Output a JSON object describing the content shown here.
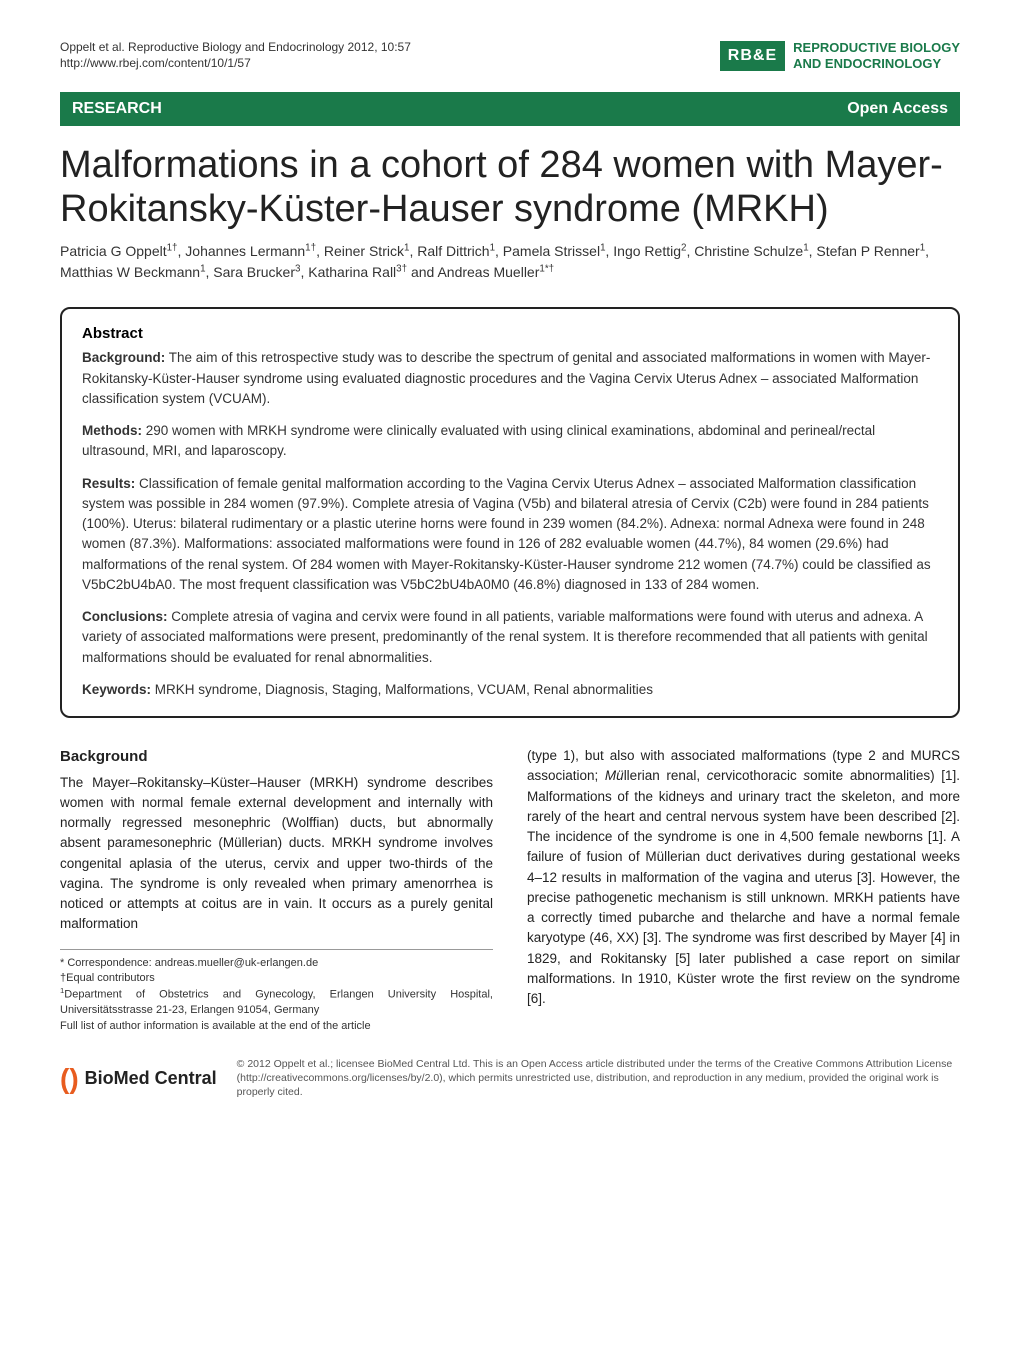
{
  "header": {
    "citation_line1": "Oppelt et al. Reproductive Biology and Endocrinology 2012, 10:57",
    "citation_line2": "http://www.rbej.com/content/10/1/57",
    "logo_abbrev": "RB&E",
    "logo_name_line1": "REPRODUCTIVE BIOLOGY",
    "logo_name_line2": "AND ENDOCRINOLOGY",
    "bar_left": "RESEARCH",
    "bar_right": "Open Access"
  },
  "title": "Malformations in a cohort of 284 women with Mayer-Rokitansky-Küster-Hauser syndrome (MRKH)",
  "authors_html": "Patricia G Oppelt<sup>1†</sup>, Johannes Lermann<sup>1†</sup>, Reiner Strick<sup>1</sup>, Ralf Dittrich<sup>1</sup>, Pamela Strissel<sup>1</sup>, Ingo Rettig<sup>2</sup>, Christine Schulze<sup>1</sup>, Stefan P Renner<sup>1</sup>, Matthias W Beckmann<sup>1</sup>, Sara Brucker<sup>3</sup>, Katharina Rall<sup>3†</sup> and Andreas Mueller<sup>1*†</sup>",
  "abstract": {
    "heading": "Abstract",
    "background_label": "Background:",
    "background": "The aim of this retrospective study was to describe the spectrum of genital and associated malformations in women with Mayer-Rokitansky-Küster-Hauser syndrome using evaluated diagnostic procedures and the Vagina Cervix Uterus Adnex – associated Malformation classification system (VCUAM).",
    "methods_label": "Methods:",
    "methods": "290 women with MRKH syndrome were clinically evaluated with using clinical examinations, abdominal and perineal/rectal ultrasound, MRI, and laparoscopy.",
    "results_label": "Results:",
    "results": "Classification of female genital malformation according to the Vagina Cervix Uterus Adnex – associated Malformation classification system was possible in 284 women (97.9%). Complete atresia of Vagina (V5b) and bilateral atresia of Cervix (C2b) were found in 284 patients (100%). Uterus: bilateral rudimentary or a plastic uterine horns were found in 239 women (84.2%). Adnexa: normal Adnexa were found in 248 women (87.3%). Malformations: associated malformations were found in 126 of 282 evaluable women (44.7%), 84 women (29.6%) had malformations of the renal system. Of 284 women with Mayer-Rokitansky-Küster-Hauser syndrome 212 women (74.7%) could be classified as V5bC2bU4bA0. The most frequent classification was V5bC2bU4bA0M0 (46.8%) diagnosed in 133 of 284 women.",
    "conclusions_label": "Conclusions:",
    "conclusions": "Complete atresia of vagina and cervix were found in all patients, variable malformations were found with uterus and adnexa. A variety of associated malformations were present, predominantly of the renal system. It is therefore recommended that all patients with genital malformations should be evaluated for renal abnormalities.",
    "keywords_label": "Keywords:",
    "keywords": "MRKH syndrome, Diagnosis, Staging, Malformations, VCUAM, Renal abnormalities"
  },
  "body": {
    "background_heading": "Background",
    "left_col": "The Mayer–Rokitansky–Küster–Hauser (MRKH) syndrome describes women with normal female external development and internally with normally regressed mesonephric (Wolffian) ducts, but abnormally absent paramesonephric (Müllerian) ducts. MRKH syndrome involves congenital aplasia of the uterus, cervix and upper two-thirds of the vagina. The syndrome is only revealed when primary amenorrhea is noticed or attempts at coitus are in vain. It occurs as a purely genital malformation",
    "right_col_html": "(type 1), but also with associated malformations (type 2 and MURCS association; <i>Mü</i>llerian renal, <i>c</i>ervicothoracic <i>s</i>omite abnormalities) [1]. Malformations of the kidneys and urinary tract the skeleton, and more rarely of the heart and central nervous system have been described [2]. The incidence of the syndrome is one in 4,500 female newborns [1]. A failure of fusion of Müllerian duct derivatives during gestational weeks 4–12 results in malformation of the vagina and uterus [3]. However, the precise pathogenetic mechanism is still unknown. MRKH patients have a correctly timed pubarche and thelarche and have a normal female karyotype (46, XX) [3]. The syndrome was first described by Mayer [4] in 1829, and Rokitansky [5] later published a case report on similar malformations. In 1910, Küster wrote the first review on the syndrome [6]."
  },
  "correspondence": {
    "line1": "* Correspondence: andreas.mueller@uk-erlangen.de",
    "line2": "†Equal contributors",
    "line3_html": "<sup>1</sup>Department of Obstetrics and Gynecology, Erlangen University Hospital, Universitätsstrasse 21-23, Erlangen 91054, Germany",
    "line4": "Full list of author information is available at the end of the article"
  },
  "footer": {
    "bmc_text": "BioMed Central",
    "license": "© 2012 Oppelt et al.; licensee BioMed Central Ltd. This is an Open Access article distributed under the terms of the Creative Commons Attribution License (http://creativecommons.org/licenses/by/2.0), which permits unrestricted use, distribution, and reproduction in any medium, provided the original work is properly cited."
  },
  "colors": {
    "brand_green": "#1a7a4a",
    "brand_orange": "#e85c1f"
  }
}
